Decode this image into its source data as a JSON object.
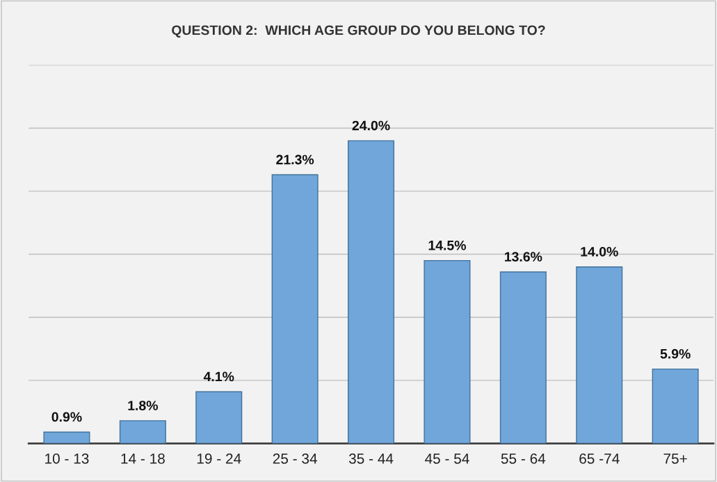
{
  "chart_data": {
    "type": "bar",
    "title": "QUESTION 2:  WHICH AGE GROUP DO YOU BELONG TO?",
    "categories": [
      "10 - 13",
      "14 - 18",
      "19 - 24",
      "25 - 34",
      "35 - 44",
      "45 - 54",
      "55 - 64",
      "65 -74",
      "75+"
    ],
    "values": [
      0.9,
      1.8,
      4.1,
      21.3,
      24.0,
      14.5,
      13.6,
      14.0,
      5.9
    ],
    "value_labels": [
      "0.9%",
      "1.8%",
      "4.1%",
      "21.3%",
      "24.0%",
      "14.5%",
      "13.6%",
      "14.0%",
      "5.9%"
    ],
    "color": "#70a6d9",
    "ylim": [
      0,
      30
    ],
    "yticks": [
      {
        "value": 0,
        "label": null
      },
      {
        "value": 5,
        "label": null
      },
      {
        "value": 10,
        "label": null
      },
      {
        "value": 15,
        "label": null
      },
      {
        "value": 20,
        "label": null
      },
      {
        "value": 25,
        "label": null
      },
      {
        "value": 30,
        "label": null
      }
    ],
    "grid": "y",
    "tick_labels": "x",
    "legend": false
  }
}
